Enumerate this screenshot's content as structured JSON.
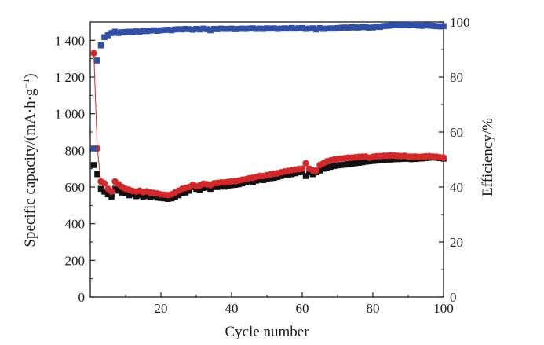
{
  "chart_data": {
    "type": "scatter",
    "title": "",
    "xlabel": "Cycle number",
    "ylabel": "Specific capacity/(mA·h·g",
    "ylabel_sup": "−1",
    "ylabel_close": ")",
    "y2label": "Efficiency/%",
    "xlim": [
      0,
      100
    ],
    "ylim": [
      0,
      1500
    ],
    "y2lim": [
      0,
      100
    ],
    "x_ticks": [
      "20",
      "40",
      "60",
      "80",
      "100"
    ],
    "y_ticks": [
      "0",
      "200",
      "400",
      "600",
      "800",
      "1 000",
      "1 200",
      "1 400"
    ],
    "y2_ticks": [
      "0",
      "20",
      "40",
      "60",
      "80",
      "100"
    ],
    "grid": false,
    "legend": "none",
    "series": [
      {
        "axis": "left",
        "color": "#111111",
        "marker": "square",
        "x": [
          1,
          2,
          3,
          4,
          5,
          6,
          7,
          8,
          9,
          10,
          11,
          12,
          13,
          14,
          15,
          16,
          17,
          18,
          19,
          20,
          21,
          22,
          23,
          24,
          25,
          26,
          27,
          28,
          29,
          30,
          31,
          32,
          33,
          34,
          35,
          36,
          37,
          38,
          39,
          40,
          41,
          42,
          43,
          44,
          45,
          46,
          47,
          48,
          49,
          50,
          51,
          52,
          53,
          54,
          55,
          56,
          57,
          58,
          59,
          60,
          61,
          62,
          63,
          64,
          65,
          66,
          67,
          68,
          69,
          70,
          71,
          72,
          73,
          74,
          75,
          76,
          77,
          78,
          79,
          80,
          81,
          82,
          83,
          84,
          85,
          86,
          87,
          88,
          89,
          90,
          91,
          92,
          93,
          94,
          95,
          96,
          97,
          98,
          99,
          100
        ],
        "y": [
          720,
          670,
          590,
          575,
          560,
          548,
          590,
          580,
          570,
          565,
          555,
          560,
          550,
          555,
          548,
          552,
          545,
          550,
          542,
          540,
          538,
          535,
          538,
          545,
          555,
          565,
          570,
          580,
          600,
          590,
          585,
          595,
          598,
          590,
          600,
          600,
          605,
          602,
          608,
          610,
          612,
          615,
          620,
          625,
          630,
          625,
          635,
          640,
          638,
          645,
          648,
          650,
          655,
          660,
          665,
          668,
          670,
          675,
          680,
          682,
          660,
          680,
          670,
          680,
          690,
          700,
          705,
          710,
          715,
          718,
          720,
          722,
          725,
          728,
          730,
          732,
          735,
          738,
          740,
          742,
          744,
          746,
          748,
          750,
          750,
          752,
          752,
          753,
          754,
          754,
          752,
          753,
          755,
          756,
          758,
          760,
          762,
          760,
          758,
          755
        ]
      },
      {
        "axis": "left",
        "color": "#d62728",
        "marker": "circle",
        "line": true,
        "x": [
          1,
          2,
          3,
          4,
          5,
          6,
          7,
          8,
          9,
          10,
          11,
          12,
          13,
          14,
          15,
          16,
          17,
          18,
          19,
          20,
          21,
          22,
          23,
          24,
          25,
          26,
          27,
          28,
          29,
          30,
          31,
          32,
          33,
          34,
          35,
          36,
          37,
          38,
          39,
          40,
          41,
          42,
          43,
          44,
          45,
          46,
          47,
          48,
          49,
          50,
          51,
          52,
          53,
          54,
          55,
          56,
          57,
          58,
          59,
          60,
          61,
          62,
          63,
          64,
          65,
          66,
          67,
          68,
          69,
          70,
          71,
          72,
          73,
          74,
          75,
          76,
          77,
          78,
          79,
          80,
          81,
          82,
          83,
          84,
          85,
          86,
          87,
          88,
          89,
          90,
          91,
          92,
          93,
          94,
          95,
          96,
          97,
          98,
          99,
          100
        ],
        "y": [
          1330,
          810,
          630,
          620,
          590,
          575,
          630,
          615,
          600,
          590,
          585,
          578,
          575,
          580,
          572,
          576,
          570,
          568,
          565,
          560,
          558,
          556,
          560,
          570,
          580,
          590,
          595,
          600,
          612,
          605,
          608,
          618,
          615,
          610,
          620,
          622,
          625,
          625,
          628,
          630,
          632,
          635,
          640,
          642,
          648,
          650,
          655,
          660,
          660,
          665,
          668,
          672,
          675,
          680,
          685,
          688,
          692,
          695,
          698,
          700,
          730,
          700,
          690,
          690,
          720,
          730,
          740,
          745,
          750,
          752,
          755,
          757,
          760,
          760,
          762,
          764,
          765,
          766,
          760,
          765,
          768,
          768,
          770,
          770,
          772,
          771,
          770,
          768,
          770,
          765,
          765,
          766,
          764,
          765,
          767,
          768,
          766,
          765,
          762,
          760
        ]
      },
      {
        "axis": "right",
        "color": "#2f4fa8",
        "marker": "square",
        "x": [
          1,
          2,
          3,
          4,
          5,
          6,
          7,
          8,
          9,
          10,
          11,
          12,
          13,
          14,
          15,
          16,
          17,
          18,
          19,
          20,
          21,
          22,
          23,
          24,
          25,
          26,
          27,
          28,
          29,
          30,
          31,
          32,
          33,
          34,
          35,
          36,
          37,
          38,
          39,
          40,
          41,
          42,
          43,
          44,
          45,
          46,
          47,
          48,
          49,
          50,
          51,
          52,
          53,
          54,
          55,
          56,
          57,
          58,
          59,
          60,
          61,
          62,
          63,
          64,
          65,
          66,
          67,
          68,
          69,
          70,
          71,
          72,
          73,
          74,
          75,
          76,
          77,
          78,
          79,
          80,
          81,
          82,
          83,
          84,
          85,
          86,
          87,
          88,
          89,
          90,
          91,
          92,
          93,
          94,
          95,
          96,
          97,
          98,
          99,
          100
        ],
        "y": [
          54,
          86,
          91.5,
          94.5,
          95.2,
          96,
          96.5,
          96,
          96.3,
          96.4,
          96.5,
          96.4,
          96.6,
          96.5,
          96.8,
          96.7,
          96.9,
          97,
          96.8,
          97,
          97.1,
          97.2,
          97,
          97.3,
          97.4,
          97.3,
          97.5,
          97.4,
          97.2,
          97.5,
          97.3,
          97.6,
          97.4,
          97,
          97.5,
          97.4,
          97.6,
          97.5,
          97.5,
          97.6,
          97.4,
          97.5,
          97.6,
          97.5,
          97.6,
          97.7,
          97.5,
          97.6,
          97.5,
          97.7,
          97.6,
          97.7,
          97.5,
          97.6,
          97.7,
          97.6,
          97.8,
          97.6,
          97.7,
          97.8,
          97.5,
          97.6,
          97.7,
          97.3,
          97.8,
          97.5,
          97.6,
          97.7,
          97.6,
          97.8,
          97.9,
          98,
          97.9,
          98.1,
          98,
          98,
          98.2,
          98.1,
          97.9,
          98,
          98.3,
          98.2,
          98.5,
          98.6,
          98.7,
          98.8,
          98.9,
          98.8,
          98.9,
          98.8,
          99,
          98.9,
          98.7,
          98.6,
          98.8,
          98.7,
          98.6,
          98.5,
          98.4,
          98.5
        ]
      }
    ]
  }
}
